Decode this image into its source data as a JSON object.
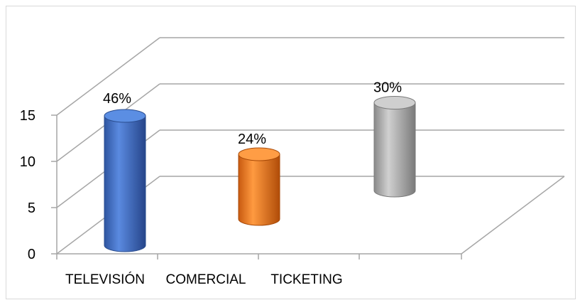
{
  "chart_data": {
    "type": "bar",
    "style": "3d-cylinder",
    "categories": [
      "TELEVISIÓN",
      "COMERCIAL",
      "TICKETING"
    ],
    "values": [
      14,
      7,
      9.5
    ],
    "data_labels": [
      "46%",
      "24%",
      "30%"
    ],
    "colors": [
      "#4472c4",
      "#ed7d31",
      "#a5a5a5"
    ],
    "title": "",
    "xlabel": "",
    "ylabel": "",
    "ylim": [
      0,
      20
    ],
    "yticks": [
      "0",
      "5",
      "10",
      "15"
    ],
    "grid": true,
    "legend": "none"
  }
}
